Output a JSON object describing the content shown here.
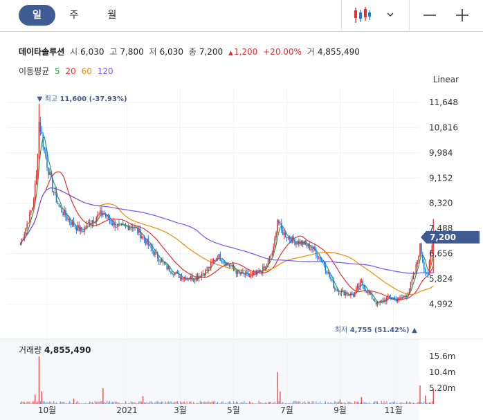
{
  "tabs": [
    {
      "label": "일",
      "active": true
    },
    {
      "label": "주",
      "active": false
    },
    {
      "label": "월",
      "active": false
    }
  ],
  "scale_mode": "Linear",
  "stock": {
    "name": "데이타솔루션",
    "open_label": "시",
    "open": "6,030",
    "high_label": "고",
    "high": "7,800",
    "low_label": "저",
    "low": "6,030",
    "close_label": "종",
    "close": "7,200",
    "change_arrow": "▲",
    "change": "1,200",
    "change_pct": "+20.00%",
    "volume_label": "거",
    "volume": "4,855,490"
  },
  "moving_average": {
    "label": "이동평균",
    "periods": [
      {
        "period": "5",
        "color": "#2f9e44"
      },
      {
        "period": "20",
        "color": "#e03131"
      },
      {
        "period": "60",
        "color": "#f08c00"
      },
      {
        "period": "120",
        "color": "#7950f2"
      }
    ]
  },
  "volume_panel": {
    "label": "거래량",
    "value": "4,855,490"
  },
  "colors": {
    "up": "#e03131",
    "down": "#1c7ed6",
    "accent": "#3e5b94",
    "grid": "#eef0f3"
  },
  "chart_data": {
    "type": "candlestick",
    "price_axis": {
      "ticks": [
        11648,
        10816,
        9984,
        9152,
        8320,
        7488,
        6656,
        5824,
        4992
      ],
      "labels": [
        "11,648",
        "10,816",
        "9,984",
        "9,152",
        "8,320",
        "7,488",
        "6,656",
        "5,824",
        "4,992"
      ],
      "ylim": [
        4300,
        12100
      ]
    },
    "current_price": {
      "value": 7200,
      "label": "7,200"
    },
    "max_annotation": {
      "arrow": "▼",
      "label": "최고",
      "value": "11,600",
      "pct": "(-37.93%)"
    },
    "min_annotation": {
      "arrow": "▲",
      "label": "최저",
      "value": "4,755",
      "pct": "(51.42%)"
    },
    "volume_axis": {
      "ticks": [
        15600000,
        10400000,
        5200000
      ],
      "labels": [
        "15.6m",
        "10.4m",
        "5.20m"
      ],
      "ylim": [
        0,
        19000000
      ]
    },
    "x_ticks": [
      "10월",
      "2021",
      "3월",
      "5월",
      "7월",
      "9월",
      "11월"
    ],
    "price_series": [
      {
        "m": 0,
        "p": 7000
      },
      {
        "m": 0.2,
        "p": 7500
      },
      {
        "m": 0.45,
        "p": 8200
      },
      {
        "m": 0.6,
        "p": 9200
      },
      {
        "m": 0.7,
        "p": 11000
      },
      {
        "m": 0.85,
        "p": 10300
      },
      {
        "m": 1.0,
        "p": 9600
      },
      {
        "m": 1.2,
        "p": 8800
      },
      {
        "m": 1.45,
        "p": 8200
      },
      {
        "m": 1.7,
        "p": 7900
      },
      {
        "m": 2.0,
        "p": 7600
      },
      {
        "m": 2.3,
        "p": 7400
      },
      {
        "m": 2.6,
        "p": 7700
      },
      {
        "m": 2.9,
        "p": 7900
      },
      {
        "m": 3.1,
        "p": 8000
      },
      {
        "m": 3.4,
        "p": 7700
      },
      {
        "m": 3.8,
        "p": 7500
      },
      {
        "m": 4.2,
        "p": 7600
      },
      {
        "m": 4.6,
        "p": 7200
      },
      {
        "m": 5.0,
        "p": 6700
      },
      {
        "m": 5.5,
        "p": 6200
      },
      {
        "m": 6.0,
        "p": 5900
      },
      {
        "m": 6.5,
        "p": 5850
      },
      {
        "m": 7.0,
        "p": 6100
      },
      {
        "m": 7.4,
        "p": 6600
      },
      {
        "m": 7.8,
        "p": 6300
      },
      {
        "m": 8.2,
        "p": 6000
      },
      {
        "m": 8.7,
        "p": 5900
      },
      {
        "m": 9.2,
        "p": 6200
      },
      {
        "m": 9.5,
        "p": 6800
      },
      {
        "m": 9.65,
        "p": 7800
      },
      {
        "m": 9.8,
        "p": 7400
      },
      {
        "m": 10.2,
        "p": 7100
      },
      {
        "m": 10.6,
        "p": 7000
      },
      {
        "m": 11.0,
        "p": 6800
      },
      {
        "m": 11.4,
        "p": 6300
      },
      {
        "m": 11.8,
        "p": 5500
      },
      {
        "m": 12.2,
        "p": 5350
      },
      {
        "m": 12.5,
        "p": 5300
      },
      {
        "m": 12.8,
        "p": 5700
      },
      {
        "m": 13.1,
        "p": 5300
      },
      {
        "m": 13.4,
        "p": 5000
      },
      {
        "m": 13.8,
        "p": 5200
      },
      {
        "m": 14.2,
        "p": 5150
      },
      {
        "m": 14.5,
        "p": 5300
      },
      {
        "m": 14.8,
        "p": 6000
      },
      {
        "m": 15.0,
        "p": 6900
      },
      {
        "m": 15.15,
        "p": 6200
      },
      {
        "m": 15.3,
        "p": 6000
      },
      {
        "m": 15.5,
        "p": 7200
      }
    ],
    "volume_spikes": [
      {
        "m": 0.7,
        "v": 15600000
      },
      {
        "m": 0.8,
        "v": 4200000
      },
      {
        "m": 0.55,
        "v": 3100000
      },
      {
        "m": 2.0,
        "v": 1800000
      },
      {
        "m": 3.1,
        "v": 5200000
      },
      {
        "m": 4.6,
        "v": 2600000
      },
      {
        "m": 9.65,
        "v": 10400000
      },
      {
        "m": 9.75,
        "v": 4100000
      },
      {
        "m": 12.0,
        "v": 1500000
      },
      {
        "m": 12.8,
        "v": 2300000
      },
      {
        "m": 15.0,
        "v": 6100000
      },
      {
        "m": 15.2,
        "v": 2800000
      },
      {
        "m": 15.5,
        "v": 4855490
      }
    ]
  }
}
